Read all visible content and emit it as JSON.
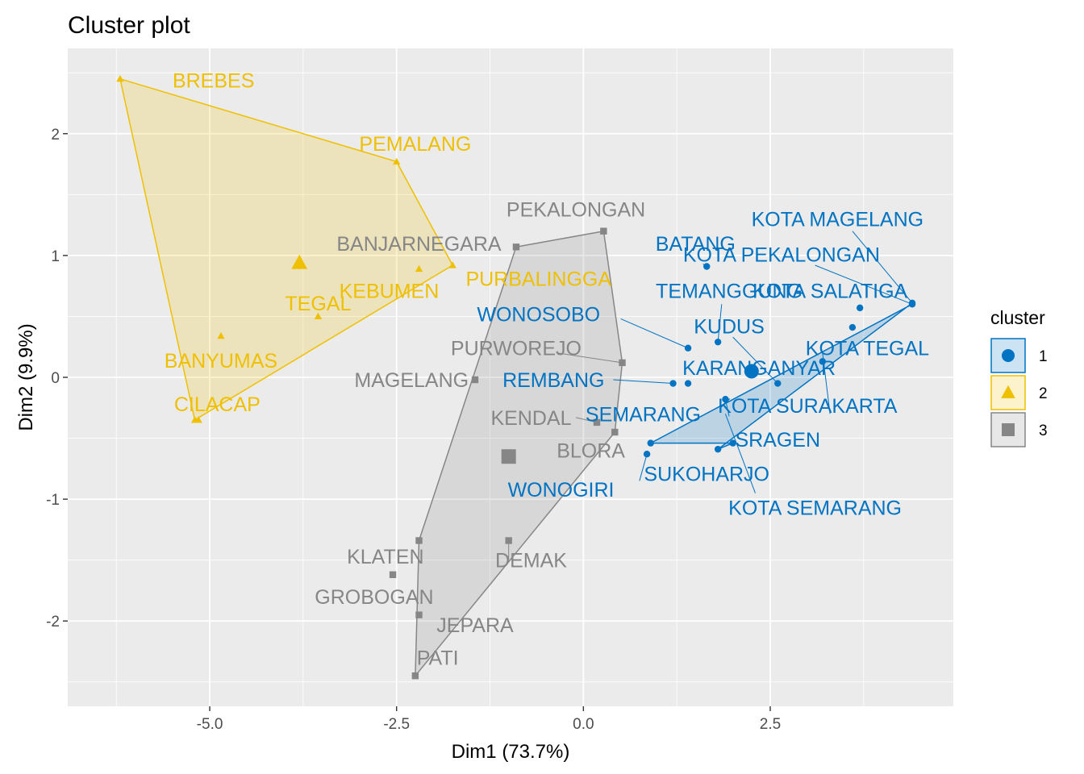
{
  "chart_data": {
    "type": "scatter",
    "title": "Cluster plot",
    "xlabel": "Dim1 (73.7%)",
    "ylabel": "Dim2 (9.9%)",
    "xlim": [
      -6.9,
      4.95
    ],
    "ylim": [
      -2.7,
      2.7
    ],
    "xticks": [
      -5.0,
      -2.5,
      0.0,
      2.5
    ],
    "xtick_labels": [
      "-5.0",
      "-2.5",
      "0.0",
      "2.5"
    ],
    "yticks": [
      -2,
      -1,
      0,
      1,
      2
    ],
    "ytick_labels": [
      "-2",
      "-1",
      "0",
      "1",
      "2"
    ],
    "grid": true,
    "legend": {
      "title": "cluster",
      "position": "right",
      "entries": [
        "1",
        "2",
        "3"
      ]
    },
    "colors": {
      "1": "#0073C2",
      "2": "#EFC000",
      "3": "#868686",
      "panel": "#EBEBEB",
      "grid": "#FFFFFF"
    },
    "series": [
      {
        "name": "1",
        "shape": "circle",
        "hull": [
          "SUKOHARJO",
          "KOTA PEKALONGAN",
          "KOTA MAGELANG",
          "KOTA SEMARANG",
          "SRAGEN"
        ],
        "centroid": [
          2.25,
          0.05
        ],
        "points": [
          {
            "label": "BATANG",
            "x": 1.65,
            "y": 0.91
          },
          {
            "label": "KOTA MAGELANG",
            "x": 4.4,
            "y": 0.61
          },
          {
            "label": "KOTA PEKALONGAN",
            "x": 4.4,
            "y": 0.6
          },
          {
            "label": "KOTA SALATIGA",
            "x": 3.7,
            "y": 0.57
          },
          {
            "label": "TEMANGGUNG",
            "x": 1.8,
            "y": 0.29
          },
          {
            "label": "KUDUS",
            "x": 3.6,
            "y": 0.41
          },
          {
            "label": "WONOSOBO",
            "x": 1.4,
            "y": 0.24
          },
          {
            "label": "KOTA TEGAL",
            "x": 3.2,
            "y": 0.13
          },
          {
            "label": "KARANGANYAR",
            "x": 2.6,
            "y": -0.05
          },
          {
            "label": "REMBANG",
            "x": 1.4,
            "y": -0.05
          },
          {
            "label": "KOTA SURAKARTA",
            "x": 1.9,
            "y": -0.18
          },
          {
            "label": "SEMARANG",
            "x": 1.2,
            "y": -0.05
          },
          {
            "label": "SRAGEN",
            "x": 2.0,
            "y": -0.54
          },
          {
            "label": "SUKOHARJO",
            "x": 0.9,
            "y": -0.54
          },
          {
            "label": "KOTA SEMARANG",
            "x": 1.8,
            "y": -0.59
          },
          {
            "label": "WONOGIRI",
            "x": 0.85,
            "y": -0.63
          }
        ]
      },
      {
        "name": "2",
        "shape": "triangle",
        "hull": [
          "BREBES",
          "PEMALANG",
          "PURBALINGGA",
          "CILACAP"
        ],
        "centroid": [
          -3.8,
          0.94
        ],
        "points": [
          {
            "label": "BREBES",
            "x": -6.2,
            "y": 2.45
          },
          {
            "label": "PEMALANG",
            "x": -2.5,
            "y": 1.77
          },
          {
            "label": "BANJARNEGARA",
            "x": -2.2,
            "y": 0.89
          },
          {
            "label": "PURBALINGGA",
            "x": -1.75,
            "y": 0.92
          },
          {
            "label": "KEBUMEN",
            "x": -3.55,
            "y": 0.5
          },
          {
            "label": "TEGAL",
            "x": -4.85,
            "y": 0.34
          },
          {
            "label": "BANYUMAS",
            "x": -5.15,
            "y": -0.35
          },
          {
            "label": "CILACAP",
            "x": -5.2,
            "y": -0.35
          }
        ]
      },
      {
        "name": "3",
        "shape": "square",
        "hull": [
          "PEKALONGAN",
          "PURWOREJO",
          "BLORA",
          "PATI",
          "KLATEN",
          "BANJARNEGARA"
        ],
        "centroid": [
          -1.0,
          -0.65
        ],
        "points": [
          {
            "label": "PEKALONGAN",
            "x": 0.27,
            "y": 1.2
          },
          {
            "label": "BANJARNEGARA",
            "x": -0.9,
            "y": 1.07
          },
          {
            "label": "PURWOREJO",
            "x": 0.52,
            "y": 0.12
          },
          {
            "label": "MAGELANG",
            "x": -1.45,
            "y": -0.02
          },
          {
            "label": "KENDAL",
            "x": 0.18,
            "y": -0.37
          },
          {
            "label": "BLORA",
            "x": 0.42,
            "y": -0.45
          },
          {
            "label": "DEMAK",
            "x": -1.0,
            "y": -1.34
          },
          {
            "label": "KLATEN",
            "x": -2.2,
            "y": -1.34
          },
          {
            "label": "GROBOGAN",
            "x": -2.55,
            "y": -1.62
          },
          {
            "label": "JEPARA",
            "x": -2.2,
            "y": -1.95
          },
          {
            "label": "PATI",
            "x": -2.25,
            "y": -2.45
          }
        ]
      }
    ],
    "labels": [
      {
        "text": "BREBES",
        "series": "2",
        "x": -4.95,
        "y": 2.44
      },
      {
        "text": "PEMALANG",
        "series": "2",
        "x": -2.25,
        "y": 1.92
      },
      {
        "text": "BANJARNEGARA",
        "series": "3",
        "x": -2.2,
        "y": 1.1
      },
      {
        "text": "PURBALINGGA",
        "series": "2",
        "x": -0.6,
        "y": 0.81
      },
      {
        "text": "KEBUMEN",
        "series": "2",
        "x": -2.6,
        "y": 0.71
      },
      {
        "text": "TEGAL",
        "series": "2",
        "x": -3.55,
        "y": 0.61
      },
      {
        "text": "BANYUMAS",
        "series": "2",
        "x": -4.85,
        "y": 0.14
      },
      {
        "text": "CILACAP",
        "series": "2",
        "x": -4.9,
        "y": -0.22
      },
      {
        "text": "PEKALONGAN",
        "series": "3",
        "x": -0.1,
        "y": 1.38
      },
      {
        "text": "PURWOREJO",
        "series": "3",
        "x": -0.9,
        "y": 0.24
      },
      {
        "text": "MAGELANG",
        "series": "3",
        "x": -2.3,
        "y": -0.02
      },
      {
        "text": "KENDAL",
        "series": "3",
        "x": -0.7,
        "y": -0.33
      },
      {
        "text": "BLORA",
        "series": "3",
        "x": 0.1,
        "y": -0.6
      },
      {
        "text": "DEMAK",
        "series": "3",
        "x": -0.7,
        "y": -1.5
      },
      {
        "text": "KLATEN",
        "series": "3",
        "x": -2.65,
        "y": -1.47
      },
      {
        "text": "GROBOGAN",
        "series": "3",
        "x": -2.8,
        "y": -1.8
      },
      {
        "text": "JEPARA",
        "series": "3",
        "x": -1.45,
        "y": -2.03
      },
      {
        "text": "PATI",
        "series": "3",
        "x": -1.95,
        "y": -2.3
      },
      {
        "text": "BATANG",
        "series": "1",
        "x": 1.5,
        "y": 1.1
      },
      {
        "text": "KOTA MAGELANG",
        "series": "1",
        "x": 3.4,
        "y": 1.3
      },
      {
        "text": "KOTA PEKALONGAN",
        "series": "1",
        "x": 2.65,
        "y": 1.01
      },
      {
        "text": "TEMANGGUNG",
        "series": "1",
        "x": 1.95,
        "y": 0.71
      },
      {
        "text": "KOTA SALATIGA",
        "series": "1",
        "x": 3.3,
        "y": 0.71
      },
      {
        "text": "WONOSOBO",
        "series": "1",
        "x": -0.6,
        "y": 0.52
      },
      {
        "text": "KUDUS",
        "series": "1",
        "x": 1.95,
        "y": 0.42
      },
      {
        "text": "KOTA TEGAL",
        "series": "1",
        "x": 3.8,
        "y": 0.24
      },
      {
        "text": "KARANGANYAR",
        "series": "1",
        "x": 2.35,
        "y": 0.08
      },
      {
        "text": "REMBANG",
        "series": "1",
        "x": -0.4,
        "y": -0.02
      },
      {
        "text": "KOTA SURAKARTA",
        "series": "1",
        "x": 3.0,
        "y": -0.23
      },
      {
        "text": "SEMARANG",
        "series": "1",
        "x": 0.8,
        "y": -0.3
      },
      {
        "text": "SRAGEN",
        "series": "1",
        "x": 2.6,
        "y": -0.51
      },
      {
        "text": "SUKOHARJO",
        "series": "1",
        "x": 1.65,
        "y": -0.79
      },
      {
        "text": "WONOGIRI",
        "series": "1",
        "x": -0.3,
        "y": -0.92
      },
      {
        "text": "KOTA SEMARANG",
        "series": "1",
        "x": 3.1,
        "y": -1.07
      }
    ],
    "connectors": [
      {
        "series": "1",
        "from": [
          1.6,
          0.93
        ],
        "to": [
          1.65,
          0.91
        ]
      },
      {
        "series": "1",
        "from": [
          3.6,
          1.2
        ],
        "to": [
          4.4,
          0.61
        ]
      },
      {
        "series": "1",
        "from": [
          3.1,
          0.92
        ],
        "to": [
          4.4,
          0.6
        ]
      },
      {
        "series": "1",
        "from": [
          1.85,
          0.6
        ],
        "to": [
          1.8,
          0.29
        ]
      },
      {
        "series": "1",
        "from": [
          0.5,
          0.48
        ],
        "to": [
          1.4,
          0.24
        ]
      },
      {
        "series": "1",
        "from": [
          2.0,
          0.33
        ],
        "to": [
          2.6,
          -0.05
        ]
      },
      {
        "series": "1",
        "from": [
          3.2,
          0.2
        ],
        "to": [
          3.3,
          -0.3
        ]
      },
      {
        "series": "1",
        "from": [
          0.4,
          -0.02
        ],
        "to": [
          1.2,
          -0.05
        ]
      },
      {
        "series": "1",
        "from": [
          1.95,
          -0.32
        ],
        "to": [
          1.9,
          -0.18
        ]
      },
      {
        "series": "1",
        "from": [
          1.9,
          -0.3
        ],
        "to": [
          2.3,
          -0.95
        ]
      },
      {
        "series": "1",
        "from": [
          0.75,
          -0.85
        ],
        "to": [
          0.85,
          -0.63
        ]
      },
      {
        "series": "3",
        "from": [
          -0.35,
          0.2
        ],
        "to": [
          0.52,
          0.12
        ]
      },
      {
        "series": "3",
        "from": [
          -0.1,
          -0.33
        ],
        "to": [
          0.18,
          -0.37
        ]
      },
      {
        "series": "3",
        "from": [
          -1.0,
          -1.5
        ],
        "to": [
          -1.0,
          -1.34
        ]
      }
    ]
  }
}
